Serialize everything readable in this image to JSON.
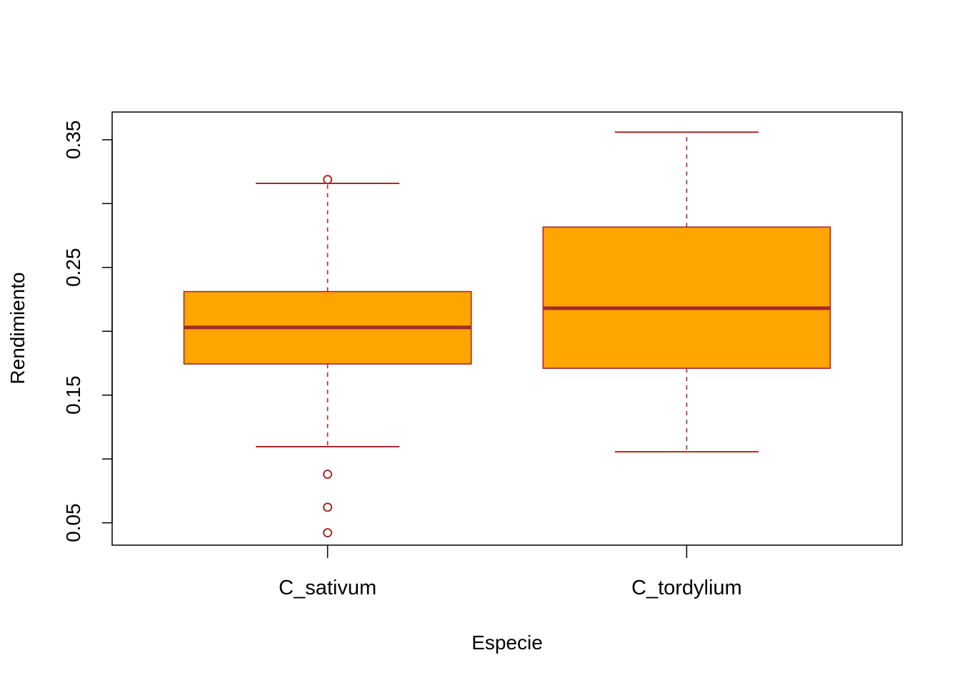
{
  "chart_data": {
    "type": "boxplot",
    "title": "",
    "xlabel": "Especie",
    "ylabel": "Rendimiento",
    "ylim": [
      0.0325,
      0.3717
    ],
    "yticks": [
      0.05,
      0.1,
      0.15,
      0.2,
      0.25,
      0.3,
      0.35
    ],
    "ytick_labels": [
      "0.05",
      "",
      "0.15",
      "",
      "0.25",
      "",
      "0.35"
    ],
    "categories": [
      "C_sativum",
      "C_tordylium"
    ],
    "boxes": [
      {
        "category": "C_sativum",
        "whisker_low": 0.1096,
        "q1": 0.1744,
        "median": 0.203,
        "q3": 0.2311,
        "whisker_high": 0.3158,
        "outliers": [
          0.3188,
          0.088,
          0.0622,
          0.0422
        ]
      },
      {
        "category": "C_tordylium",
        "whisker_low": 0.1056,
        "q1": 0.171,
        "median": 0.218,
        "q3": 0.2816,
        "whisker_high": 0.3559,
        "outliers": []
      }
    ],
    "colors": {
      "box_fill": "#FFA500",
      "box_border": "#A52A2A"
    },
    "grid": false,
    "legend": "none"
  }
}
